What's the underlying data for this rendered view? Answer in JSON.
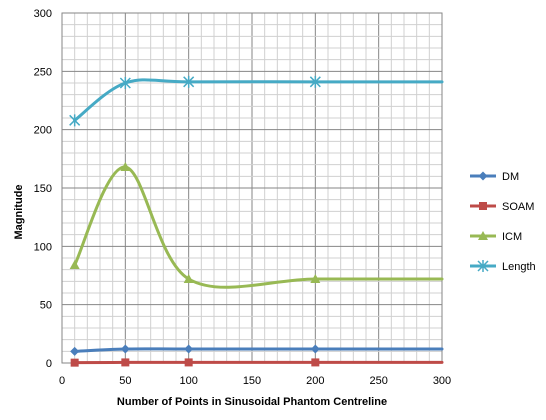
{
  "chart_data": {
    "type": "line",
    "title": "",
    "xlabel": "Number of Points in Sinusoidal  Phantom Centreline",
    "ylabel": "Magnitude",
    "xlim": [
      0,
      300
    ],
    "ylim": [
      0,
      300
    ],
    "xticks": [
      0,
      50,
      100,
      150,
      200,
      250,
      300
    ],
    "yticks": [
      0,
      50,
      100,
      150,
      200,
      250,
      300
    ],
    "grid": true,
    "smooth": true,
    "legend_position": "right",
    "x": [
      10,
      50,
      100,
      200,
      300
    ],
    "series": [
      {
        "name": "DM",
        "color": "#4a7ebb",
        "marker": "diamond",
        "values": [
          10,
          12,
          12,
          12,
          12
        ]
      },
      {
        "name": "SOAM",
        "color": "#be4b48",
        "marker": "square",
        "values": [
          0.3,
          0.5,
          0.5,
          0.5,
          0.5
        ]
      },
      {
        "name": "ICM",
        "color": "#98b954",
        "marker": "triangle",
        "values": [
          84,
          168,
          72,
          72,
          72
        ]
      },
      {
        "name": "Length",
        "color": "#46aac5",
        "marker": "star",
        "values": [
          208,
          240,
          241,
          241,
          241
        ]
      }
    ]
  }
}
